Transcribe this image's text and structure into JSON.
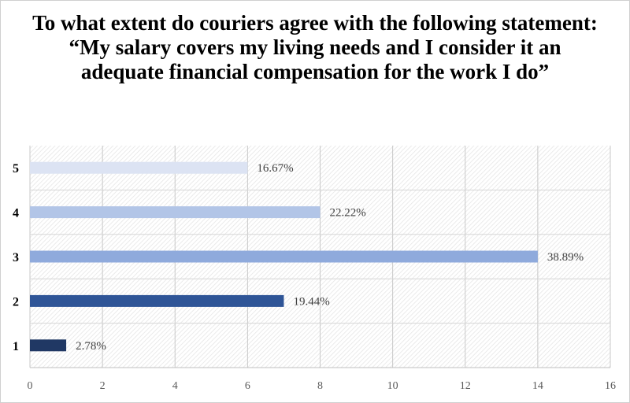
{
  "chart_data": {
    "type": "bar",
    "orientation": "horizontal",
    "title": "To what extent do couriers agree with the following statement: “My salary covers my living needs and I consider it an adequate financial compensation for the work I do”",
    "categories": [
      "5",
      "4",
      "3",
      "2",
      "1"
    ],
    "values": [
      6,
      8,
      14,
      7,
      1
    ],
    "labels": [
      "16.67%",
      "22.22%",
      "38.89%",
      "19.44%",
      "2.78%"
    ],
    "colors": [
      "#dce3f3",
      "#b2c5e7",
      "#8faadc",
      "#2f5597",
      "#203864"
    ],
    "xlim": [
      0,
      16
    ],
    "xticks": [
      "0",
      "2",
      "4",
      "6",
      "8",
      "10",
      "12",
      "14",
      "16"
    ],
    "grid": "vertical",
    "legend": "none"
  }
}
